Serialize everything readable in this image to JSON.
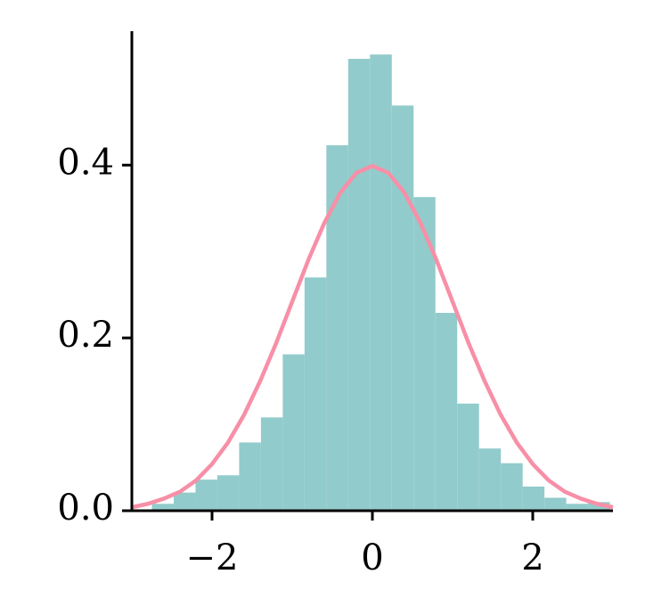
{
  "chart_data": {
    "type": "histogram",
    "xlim": [
      -3,
      3
    ],
    "ylim": [
      0,
      0.555
    ],
    "xticks": [
      {
        "value": -2,
        "label": "−2"
      },
      0,
      2
    ],
    "yticks": [
      {
        "value": 0,
        "label": "0.0"
      },
      0.2,
      0.4
    ],
    "series": [
      {
        "type": "histogram",
        "color": "#92cbcb",
        "bins": [
          -2.75,
          -2.478,
          -2.206,
          -1.934,
          -1.662,
          -1.39,
          -1.118,
          -0.846,
          -0.574,
          -0.302,
          -0.03,
          0.242,
          0.514,
          0.786,
          1.058,
          1.33,
          1.602,
          1.874,
          2.146,
          2.418,
          2.69,
          2.962
        ],
        "values": [
          0.008,
          0.021,
          0.036,
          0.041,
          0.079,
          0.108,
          0.181,
          0.27,
          0.423,
          0.523,
          0.528,
          0.469,
          0.363,
          0.229,
          0.124,
          0.072,
          0.055,
          0.028,
          0.015,
          0.008,
          0.01
        ]
      },
      {
        "type": "line",
        "color": "#f78fa7",
        "x": [
          -3,
          -2.8,
          -2.6,
          -2.4,
          -2.2,
          -2,
          -1.8,
          -1.6,
          -1.4,
          -1.2,
          -1,
          -0.8,
          -0.6,
          -0.4,
          -0.2,
          0,
          0.2,
          0.4,
          0.6,
          0.8,
          1,
          1.2,
          1.4,
          1.6,
          1.8,
          2,
          2.2,
          2.4,
          2.6,
          2.8,
          3
        ],
        "values": [
          0.004,
          0.008,
          0.014,
          0.022,
          0.035,
          0.054,
          0.079,
          0.111,
          0.15,
          0.194,
          0.242,
          0.29,
          0.333,
          0.368,
          0.391,
          0.399,
          0.391,
          0.368,
          0.333,
          0.29,
          0.242,
          0.194,
          0.15,
          0.111,
          0.079,
          0.054,
          0.035,
          0.022,
          0.014,
          0.008,
          0.004
        ]
      }
    ]
  }
}
